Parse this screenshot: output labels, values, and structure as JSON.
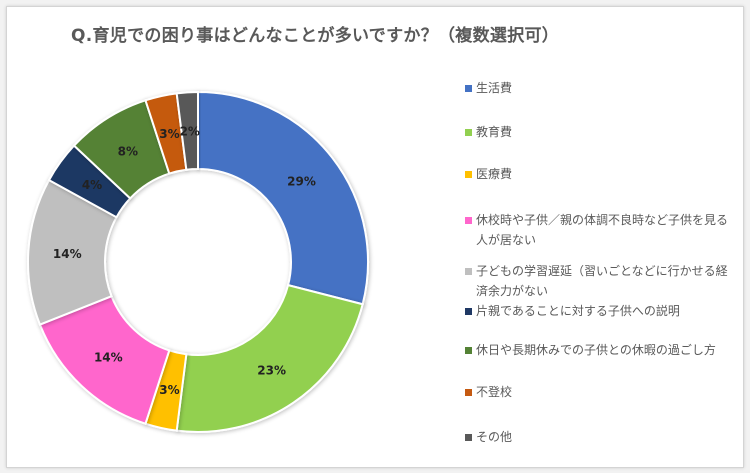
{
  "chart_data": {
    "type": "pie",
    "title": "Q.育児での困り事はどんなことが多いですか？（複数選択可）",
    "hole": true,
    "legend_position": "right",
    "series": [
      {
        "name": "生活費",
        "value": 29,
        "label": "29%",
        "color": "#4472c4"
      },
      {
        "name": "教育費",
        "value": 23,
        "label": "23%",
        "color": "#92d050"
      },
      {
        "name": "医療費",
        "value": 3,
        "label": "3%",
        "color": "#ffc000"
      },
      {
        "name": "休校時や子供／親の体調不良時など子供を見る人が居ない",
        "value": 14,
        "label": "14%",
        "color": "#ff66cc"
      },
      {
        "name": "子どもの学習遅延（習いごとなどに行かせる経済余力がない",
        "value": 14,
        "label": "14%",
        "color": "#bfbfbf"
      },
      {
        "name": "片親であることに対する子供への説明",
        "value": 4,
        "label": "4%",
        "color": "#1f3864"
      },
      {
        "name": "休日や長期休みでの子供との休暇の過ごし方",
        "value": 8,
        "label": "8%",
        "color": "#548235"
      },
      {
        "name": "不登校",
        "value": 3,
        "label": "3%",
        "color": "#c55a11"
      },
      {
        "name": "その他",
        "value": 2,
        "label": "2%",
        "color": "#595959"
      }
    ]
  }
}
